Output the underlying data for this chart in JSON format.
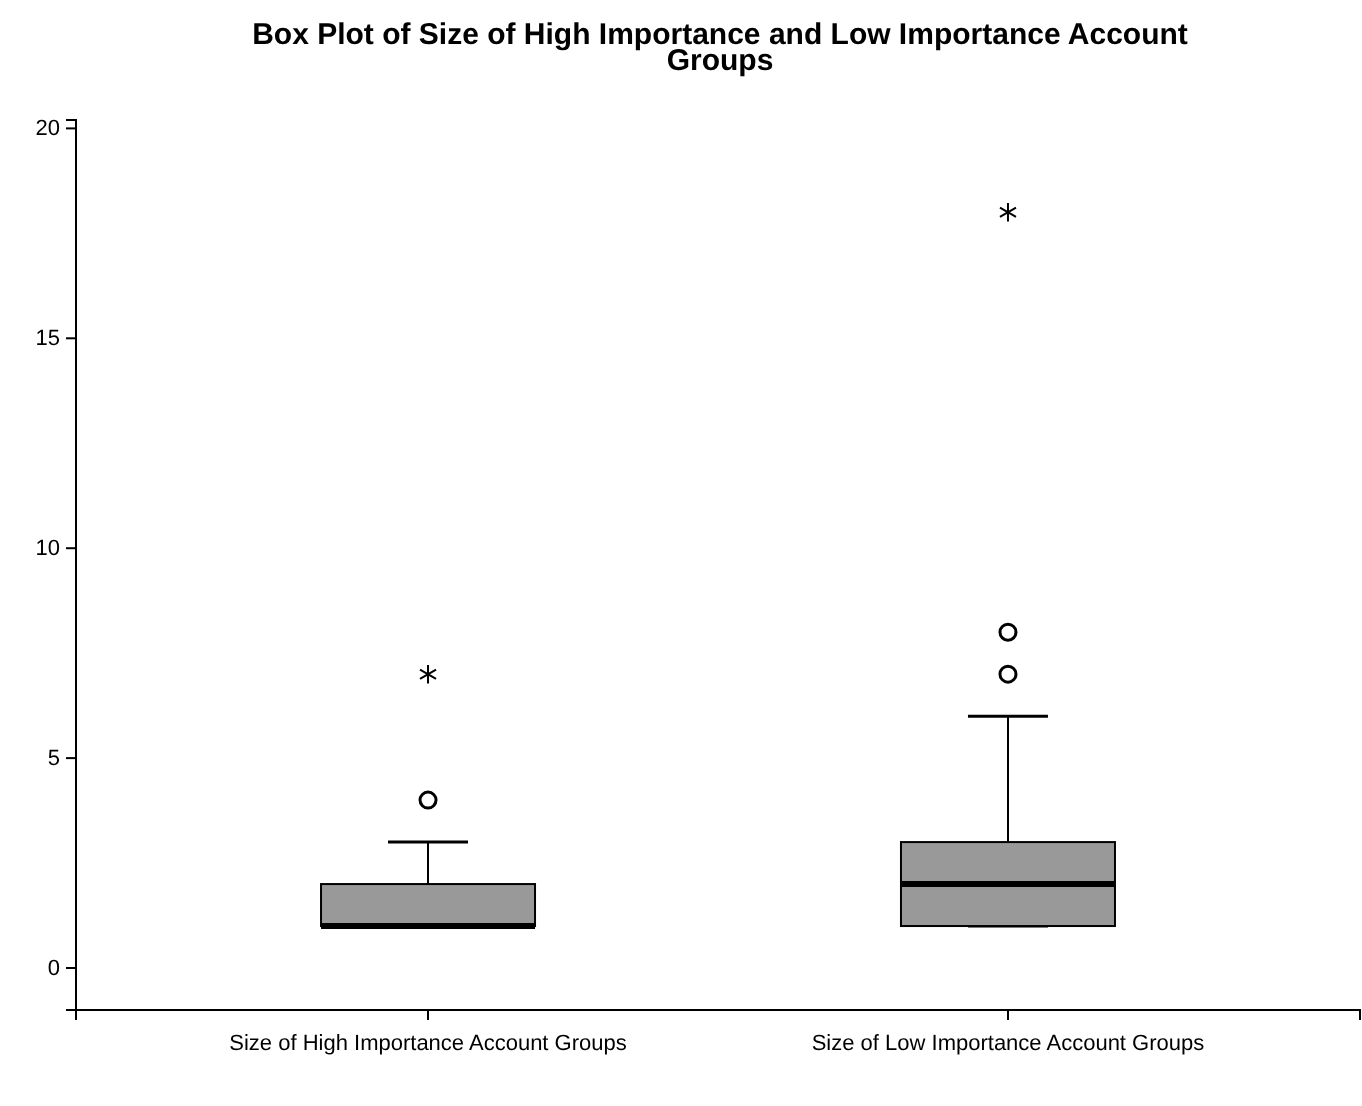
{
  "chart_data": {
    "type": "box",
    "title": "Box Plot of Size of High Importance and Low Importance Account Groups",
    "categories": [
      "Size of High Importance Account Groups",
      "Size of Low Importance Account Groups"
    ],
    "boxes": [
      {
        "low": 1,
        "q1": 1,
        "median": 1,
        "q3": 2,
        "high": 3,
        "outliers": [
          4,
          7
        ]
      },
      {
        "low": 1,
        "q1": 1,
        "median": 2,
        "q3": 3,
        "high": 6,
        "outliers": [
          7,
          8,
          18
        ]
      }
    ],
    "color": "#999999",
    "ylim": [
      -1,
      20.2
    ],
    "yticks": [
      0,
      5,
      10,
      15,
      20
    ],
    "grid": false
  }
}
